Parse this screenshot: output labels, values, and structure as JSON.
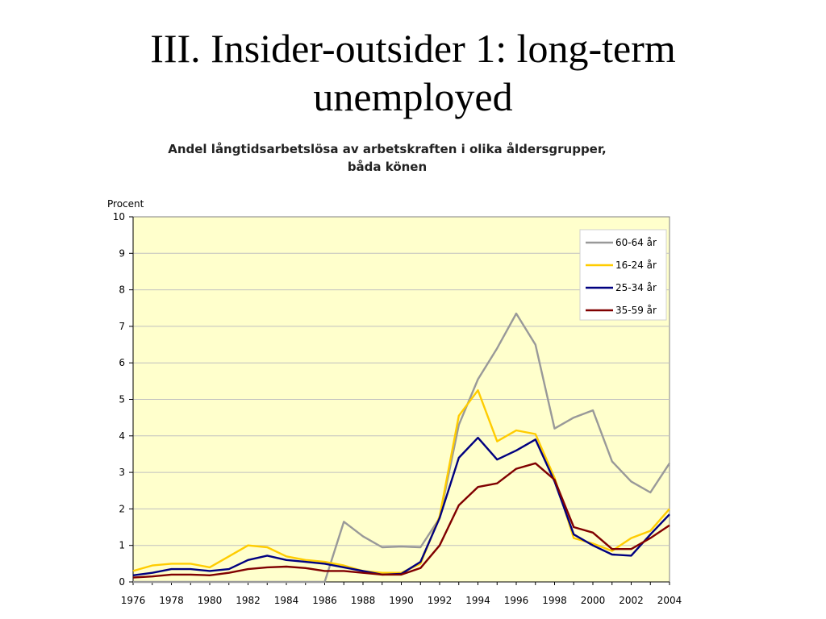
{
  "slide": {
    "title_line1": "III. Insider-outsider 1: long-term",
    "title_line2": "unemployed"
  },
  "chart_data": {
    "type": "line",
    "title_line1": "Andel långtidsarbetslösa av arbetskraften i olika åldersgrupper,",
    "title_line2": "båda könen",
    "ylabel": "Procent",
    "xlabel": "",
    "ylim": [
      0,
      10
    ],
    "yticks": [
      "0",
      "1",
      "2",
      "3",
      "4",
      "5",
      "6",
      "7",
      "8",
      "9",
      "10"
    ],
    "xticks": [
      "1976",
      "1978",
      "1980",
      "1982",
      "1984",
      "1986",
      "1988",
      "1990",
      "1992",
      "1994",
      "1996",
      "1998",
      "2000",
      "2002",
      "2004"
    ],
    "x": [
      1976,
      1977,
      1978,
      1979,
      1980,
      1981,
      1982,
      1983,
      1984,
      1985,
      1986,
      1987,
      1988,
      1989,
      1990,
      1991,
      1992,
      1993,
      1994,
      1995,
      1996,
      1997,
      1998,
      1999,
      2000,
      2001,
      2002,
      2003,
      2004
    ],
    "plot_background": "#FFFFCC",
    "grid": true,
    "legend_position": "top-right",
    "series": [
      {
        "name": "60-64 år",
        "color": "#999999",
        "values": [
          0,
          0,
          0,
          0,
          0,
          0,
          0,
          0,
          0,
          0,
          0,
          1.65,
          1.25,
          0.95,
          0.97,
          0.95,
          1.75,
          4.3,
          5.55,
          6.4,
          7.35,
          6.5,
          4.2,
          4.5,
          4.7,
          3.3,
          2.75,
          2.45,
          3.25
        ]
      },
      {
        "name": "16-24 år",
        "color": "#FFCC00",
        "values": [
          0.3,
          0.45,
          0.5,
          0.5,
          0.4,
          0.7,
          1.0,
          0.95,
          0.7,
          0.6,
          0.55,
          0.45,
          0.3,
          0.25,
          0.25,
          0.5,
          1.8,
          4.55,
          5.25,
          3.85,
          4.15,
          4.05,
          2.85,
          1.2,
          1.05,
          0.85,
          1.2,
          1.4,
          2.0
        ]
      },
      {
        "name": "25-34 år",
        "color": "#000080",
        "values": [
          0.18,
          0.25,
          0.35,
          0.35,
          0.3,
          0.35,
          0.6,
          0.72,
          0.6,
          0.55,
          0.5,
          0.4,
          0.3,
          0.2,
          0.22,
          0.55,
          1.75,
          3.4,
          3.95,
          3.35,
          3.6,
          3.9,
          2.75,
          1.3,
          1.0,
          0.75,
          0.72,
          1.3,
          1.85
        ]
      },
      {
        "name": "35-59 år",
        "color": "#800000",
        "values": [
          0.12,
          0.15,
          0.2,
          0.2,
          0.18,
          0.25,
          0.35,
          0.4,
          0.42,
          0.38,
          0.3,
          0.3,
          0.25,
          0.2,
          0.2,
          0.38,
          1.0,
          2.1,
          2.6,
          2.7,
          3.1,
          3.25,
          2.8,
          1.5,
          1.35,
          0.9,
          0.9,
          1.2,
          1.55
        ]
      }
    ]
  }
}
